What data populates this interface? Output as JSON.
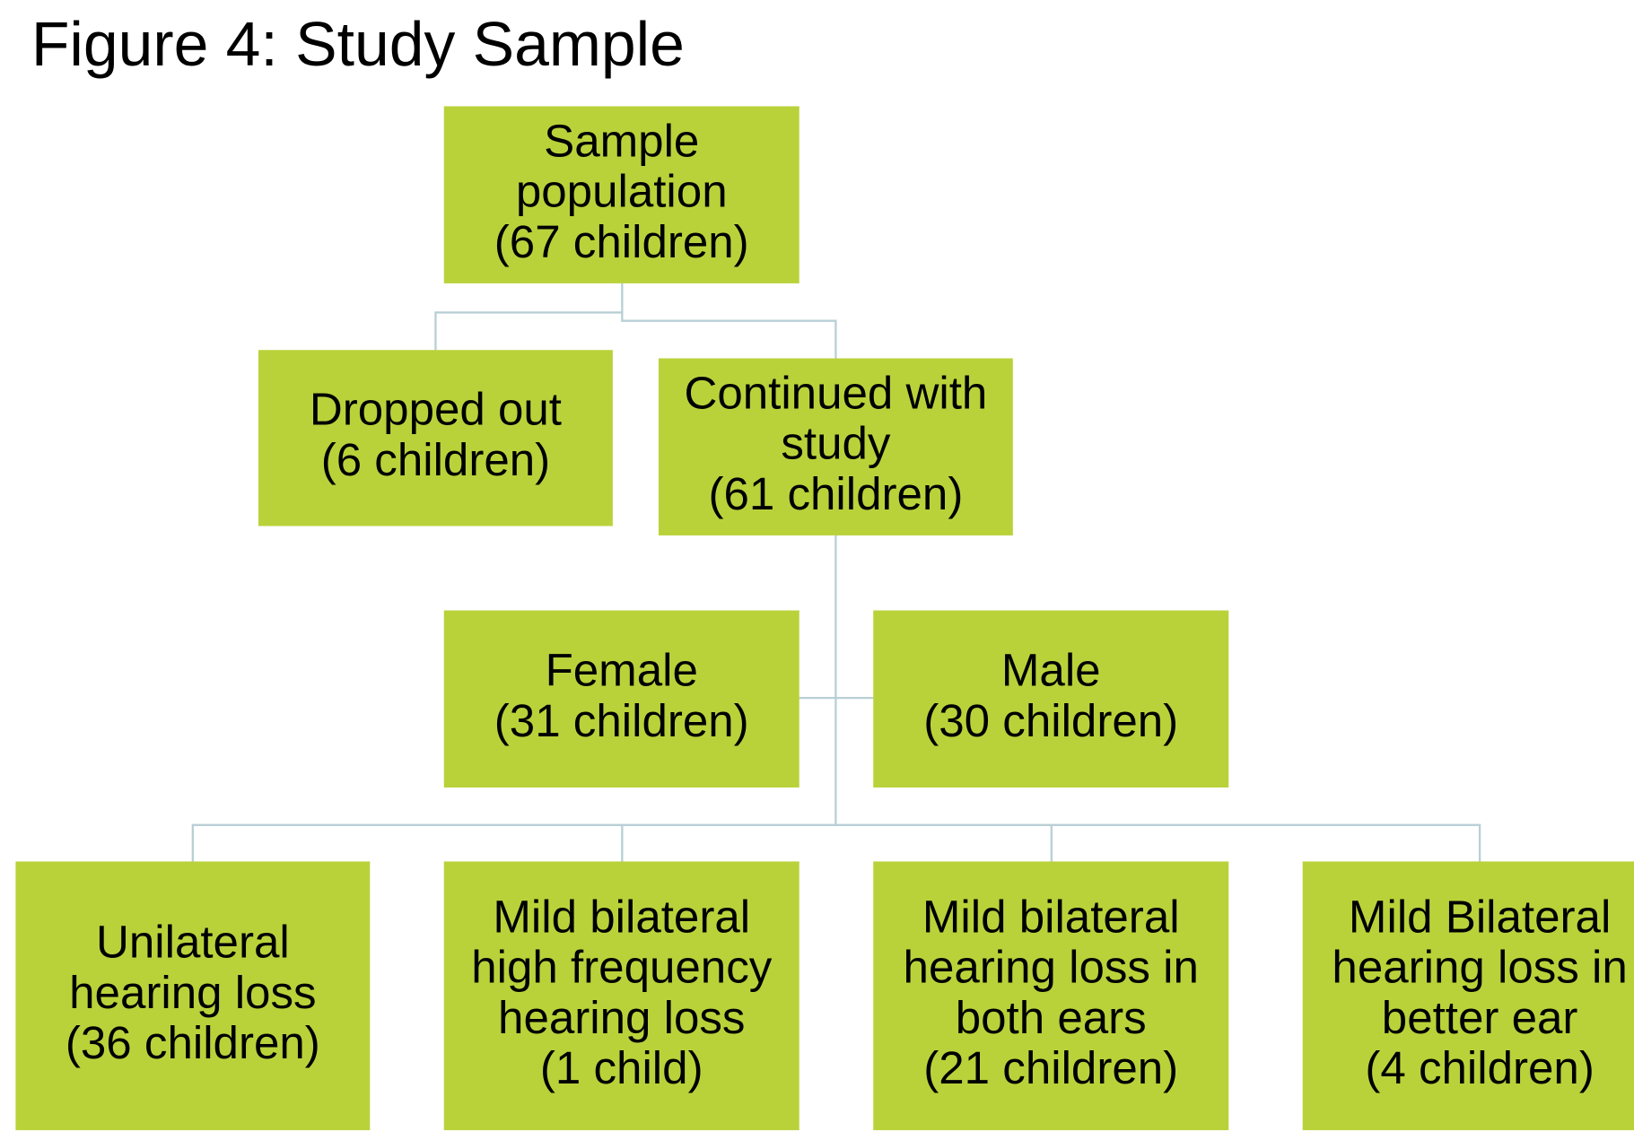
{
  "title": "Figure 4: Study Sample",
  "nodes": [
    {
      "lines": [
        "Sample",
        "population",
        "(67 children)"
      ]
    },
    {
      "lines": [
        "Dropped out",
        "(6 children)"
      ]
    },
    {
      "lines": [
        "Continued with",
        "study",
        "(61 children)"
      ]
    },
    {
      "lines": [
        "Female",
        "(31 children)"
      ]
    },
    {
      "lines": [
        "Male",
        "(30 children)"
      ]
    },
    {
      "lines": [
        "Unilateral",
        "hearing loss",
        "(36 children)"
      ]
    },
    {
      "lines": [
        "Mild bilateral",
        "high frequency",
        "hearing loss",
        "(1 child)"
      ]
    },
    {
      "lines": [
        "Mild bilateral",
        "hearing loss in",
        "both ears",
        "(21 children)"
      ]
    },
    {
      "lines": [
        "Mild Bilateral",
        "hearing loss in",
        "better ear",
        "(4 children)"
      ]
    }
  ]
}
